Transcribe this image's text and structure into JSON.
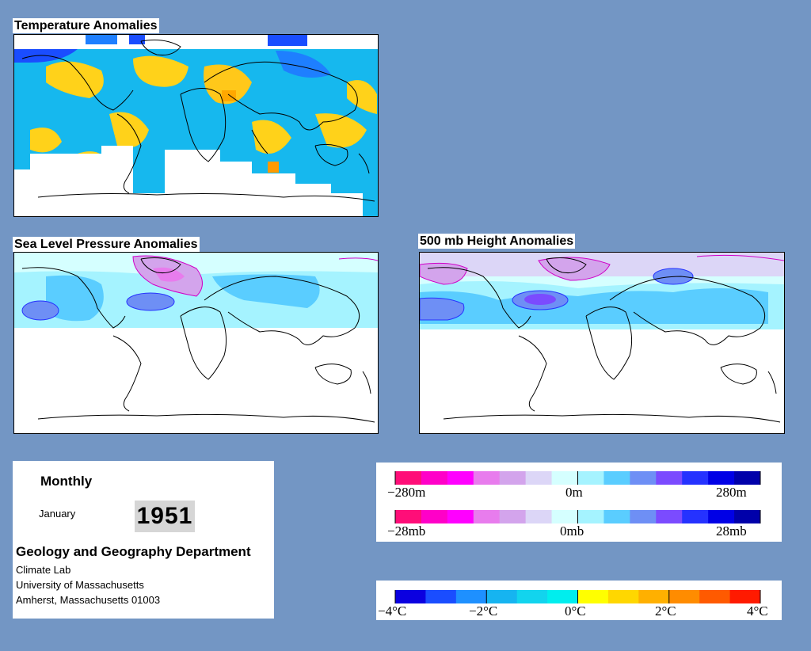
{
  "panels": {
    "temperature": {
      "title": "Temperature Anomalies"
    },
    "slp": {
      "title": "Sea Level Pressure Anomalies"
    },
    "height": {
      "title": "500 mb Height Anomalies"
    }
  },
  "info": {
    "frequency": "Monthly",
    "month": "January",
    "year": "1951",
    "department": "Geology and Geography Department",
    "lines": [
      "Climate Lab",
      "University of Massachusetts",
      "Amherst, Massachusetts 01003"
    ]
  },
  "legends": {
    "height": {
      "labels": [
        "−280m",
        "0m",
        "280m"
      ]
    },
    "pressure": {
      "labels": [
        "−28mb",
        "0mb",
        "28mb"
      ]
    },
    "temperature": {
      "labels": [
        "−4°C",
        "−2°C",
        "0°C",
        "2°C",
        "4°C"
      ]
    }
  },
  "colors": {
    "background": "#7396c4",
    "anomaly_scale": [
      "#ff0e78",
      "#ff00c8",
      "#ff00ff",
      "#e87ced",
      "#d3a4ec",
      "#dcd6f7",
      "#d5ffff",
      "#a5f3ff",
      "#5acdff",
      "#6e8ff5",
      "#7b4bff",
      "#2532ff",
      "#0000e6",
      "#0000aa"
    ],
    "temperature_scale": [
      "#0b00e0",
      "#1a4dff",
      "#1e90ff",
      "#16b4f0",
      "#12d4ee",
      "#00eeee",
      "#ffff00",
      "#ffd700",
      "#ffb000",
      "#ff8c00",
      "#ff5a00",
      "#ff1a00"
    ]
  }
}
